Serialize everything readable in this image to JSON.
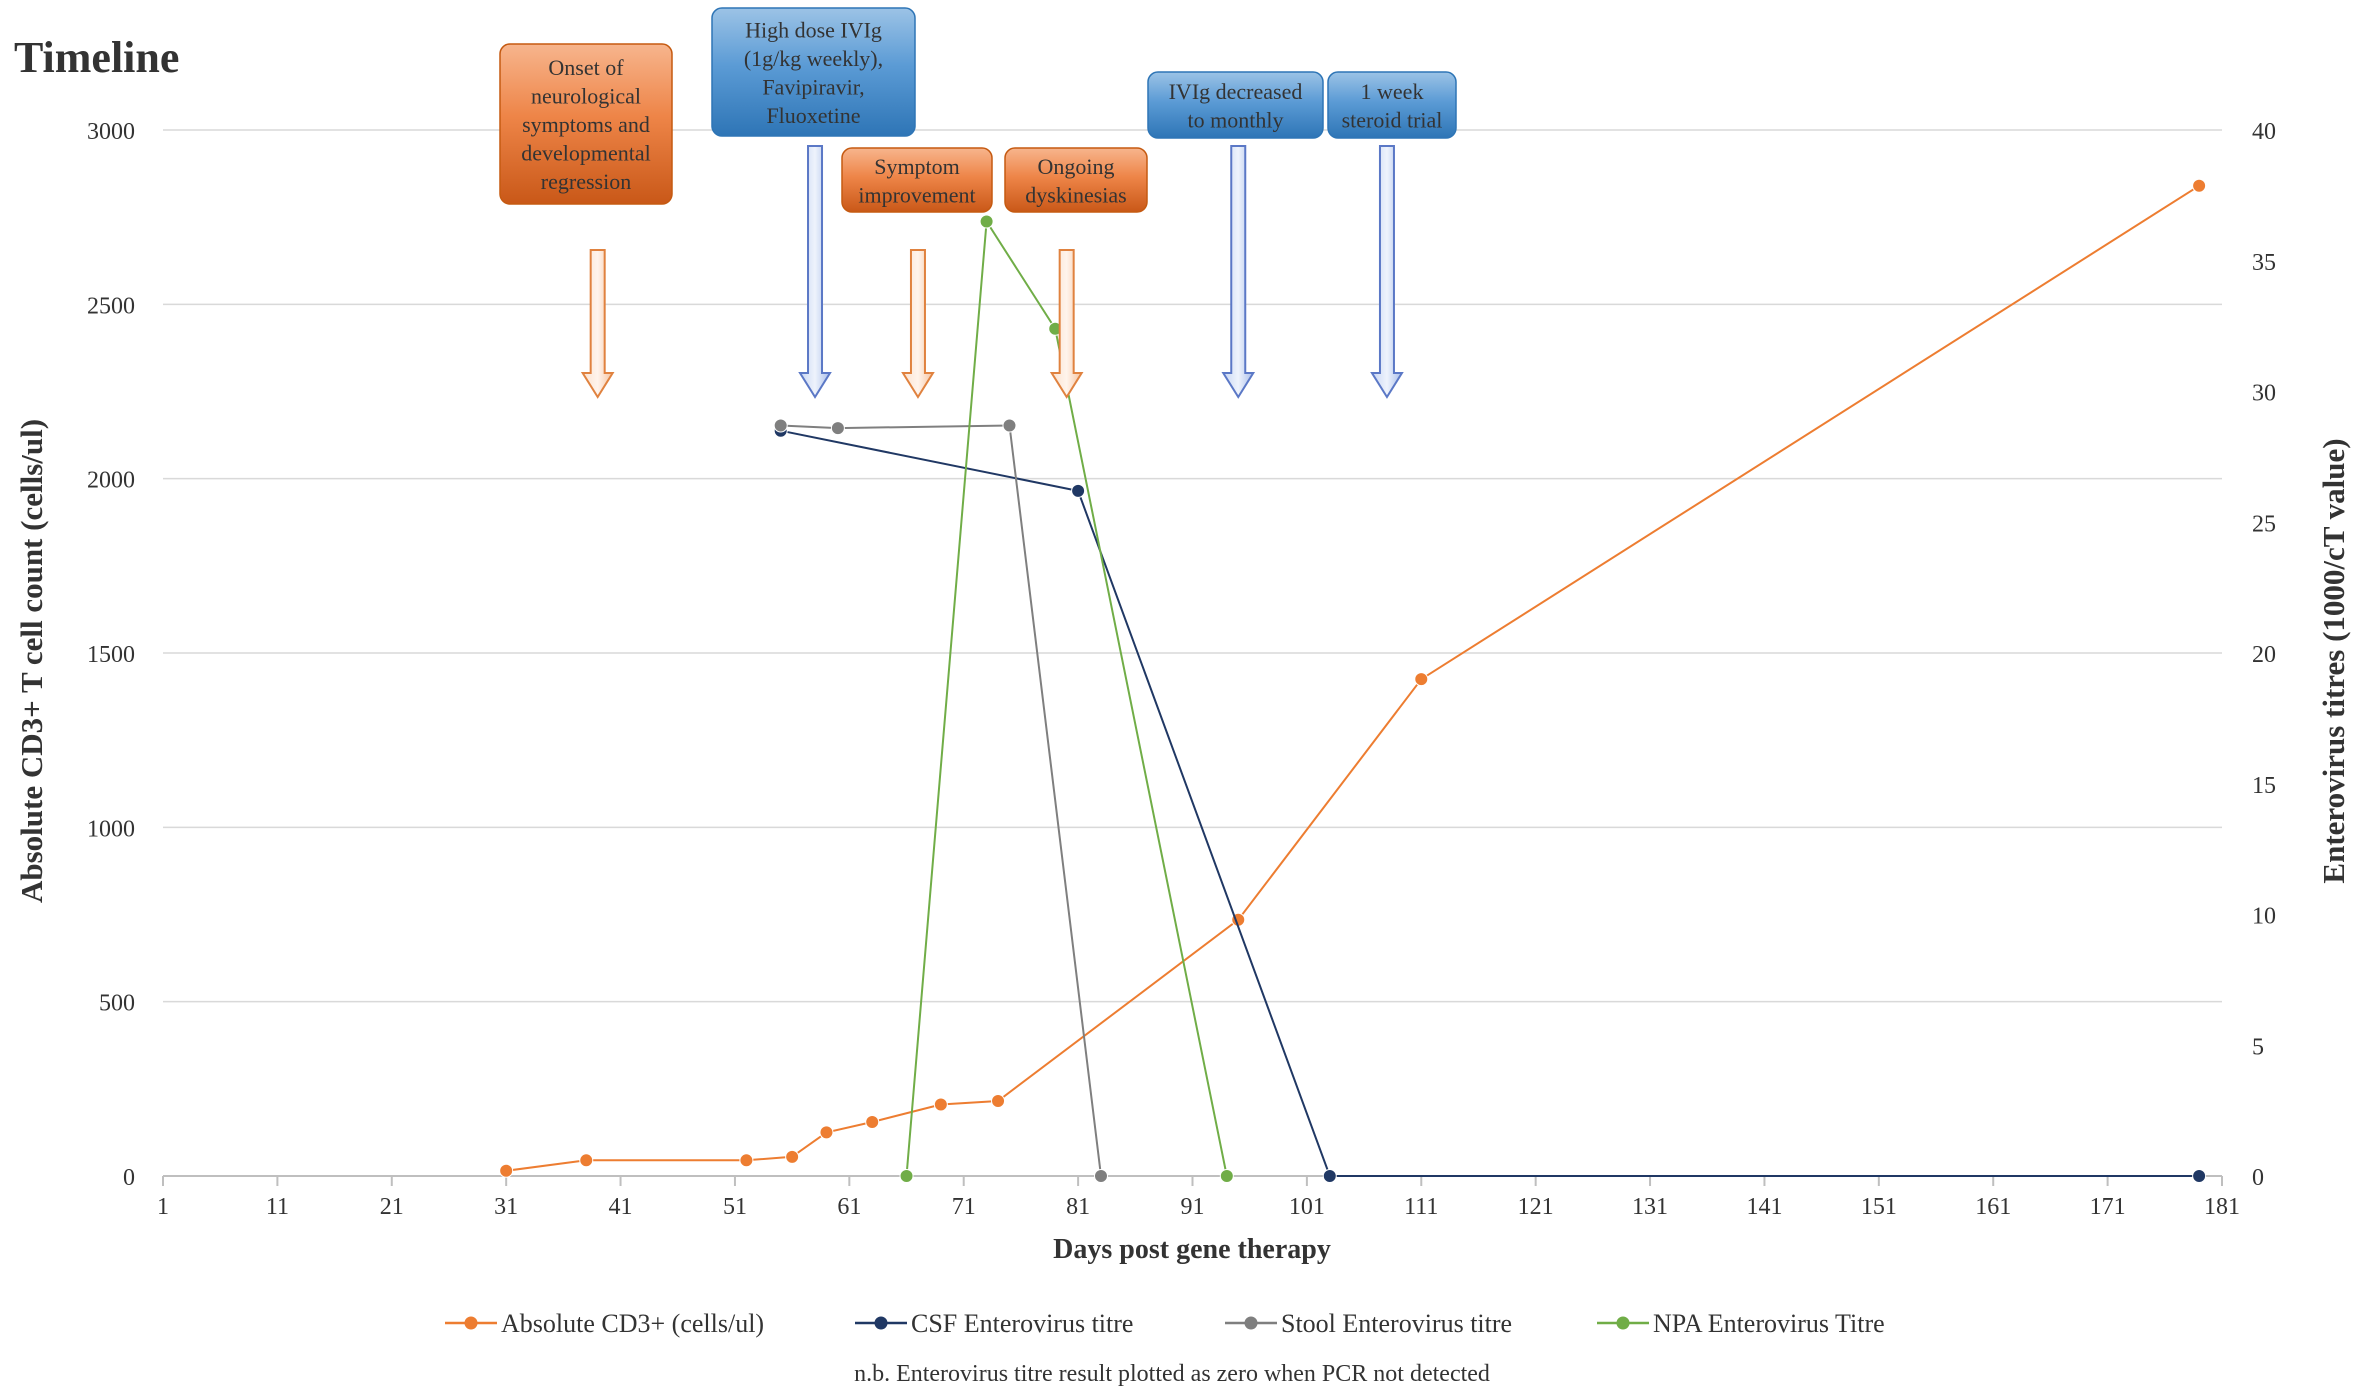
{
  "chart_data": {
    "type": "line",
    "title": "Timeline",
    "xlabel": "Days post gene therapy",
    "ylabel_left": "Absolute CD3+ T cell count (cells/ul)",
    "ylabel_right": "Enterovirus titres (1000/cT value)",
    "xlim": [
      1,
      181
    ],
    "ylim_left": [
      0,
      3000
    ],
    "ylim_right": [
      0,
      40
    ],
    "x_ticks": [
      1,
      11,
      21,
      31,
      41,
      51,
      61,
      71,
      81,
      91,
      101,
      111,
      121,
      131,
      141,
      151,
      161,
      171,
      181
    ],
    "y_left_ticks": [
      0,
      500,
      1000,
      1500,
      2000,
      2500,
      3000
    ],
    "y_right_ticks": [
      0,
      5,
      10,
      15,
      20,
      25,
      30,
      35,
      40
    ],
    "grid": true,
    "legend_position": "bottom",
    "series": [
      {
        "name": "Absolute CD3+ (cells/ul)",
        "axis": "left",
        "color": "#ED7D31",
        "points": [
          [
            31,
            15
          ],
          [
            38,
            45
          ],
          [
            52,
            45
          ],
          [
            56,
            55
          ],
          [
            59,
            125
          ],
          [
            63,
            155
          ],
          [
            69,
            205
          ],
          [
            74,
            215
          ],
          [
            95,
            735
          ],
          [
            111,
            1425
          ],
          [
            179,
            2840
          ]
        ]
      },
      {
        "name": "CSF Enterovirus titre",
        "axis": "right",
        "color": "#203864",
        "points": [
          [
            55,
            28.5
          ],
          [
            81,
            26.2
          ],
          [
            103,
            0
          ],
          [
            179,
            0
          ]
        ]
      },
      {
        "name": "Stool Enterovirus titre",
        "axis": "right",
        "color": "#7F7F7F",
        "points": [
          [
            55,
            28.7
          ],
          [
            60,
            28.6
          ],
          [
            75,
            28.7
          ],
          [
            83,
            0
          ]
        ]
      },
      {
        "name": "NPA Enterovirus Titre",
        "axis": "right",
        "color": "#70AD47",
        "points": [
          [
            66,
            0
          ],
          [
            73,
            36.5
          ],
          [
            79,
            32.4
          ],
          [
            94,
            0
          ]
        ]
      }
    ],
    "annotations": [
      {
        "lines": [
          "Onset of",
          "neurological",
          "symptoms and",
          "developmental",
          "regression"
        ],
        "day": 39,
        "kind": "orange"
      },
      {
        "lines": [
          "High dose IVIg",
          "(1g/kg weekly),",
          "Favipiravir,",
          "Fluoxetine"
        ],
        "day": 58,
        "kind": "blue"
      },
      {
        "lines": [
          "Symptom",
          "improvement"
        ],
        "day": 67,
        "kind": "orange"
      },
      {
        "lines": [
          "Ongoing",
          "dyskinesias"
        ],
        "day": 80,
        "kind": "orange"
      },
      {
        "lines": [
          "IVIg decreased",
          "to monthly"
        ],
        "day": 95,
        "kind": "blue"
      },
      {
        "lines": [
          "1 week",
          "steroid trial"
        ],
        "day": 108,
        "kind": "blue"
      }
    ],
    "footnote": "n.b. Enterovirus titre result plotted as zero when PCR not detected"
  }
}
